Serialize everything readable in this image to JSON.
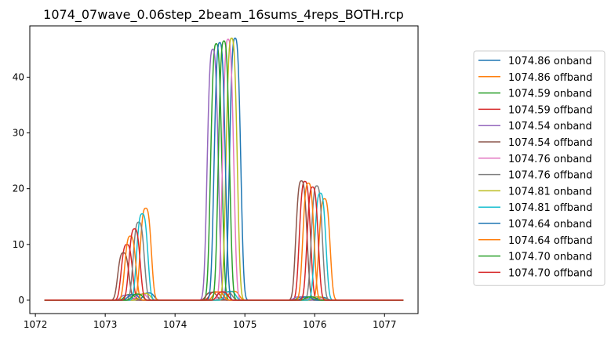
{
  "chart_data": {
    "type": "line",
    "title": "1074_07wave_0.06step_2beam_16sums_4reps_BOTH.rcp",
    "xlabel": "",
    "ylabel": "",
    "xlim": [
      1071.92,
      1077.48
    ],
    "ylim": [
      -2.4,
      49.2
    ],
    "xticks": [
      1072,
      1073,
      1074,
      1075,
      1076,
      1077
    ],
    "yticks": [
      0,
      10,
      20,
      30,
      40
    ],
    "grid": false,
    "legend": {
      "position": "right, outside plot area"
    },
    "x_range": [
      1072.13,
      1077.27
    ],
    "series_note_none": "",
    "series": [
      {
        "name": "1074.86 onband",
        "color": "#1f77b4",
        "peaks": [
          [
            1073.62,
            1.3
          ],
          [
            1074.86,
            47.0
          ],
          [
            1076.1,
            0.5
          ]
        ]
      },
      {
        "name": "1074.86 offband",
        "color": "#ff7f0e",
        "peaks": [
          [
            1073.58,
            16.5
          ],
          [
            1074.84,
            1.6
          ],
          [
            1076.14,
            18.2
          ]
        ]
      },
      {
        "name": "1074.59 onband",
        "color": "#2ca02c",
        "peaks": [
          [
            1073.35,
            1.0
          ],
          [
            1074.59,
            46.0
          ],
          [
            1075.83,
            0.6
          ]
        ]
      },
      {
        "name": "1074.59 offband",
        "color": "#d62728",
        "peaks": [
          [
            1073.31,
            10.0
          ],
          [
            1074.57,
            1.5
          ],
          [
            1075.86,
            21.3
          ]
        ]
      },
      {
        "name": "1074.54 onband",
        "color": "#9467bd",
        "peaks": [
          [
            1073.3,
            0.9
          ],
          [
            1074.54,
            45.0
          ],
          [
            1075.78,
            0.6
          ]
        ]
      },
      {
        "name": "1074.54 offband",
        "color": "#8c564b",
        "peaks": [
          [
            1073.26,
            8.5
          ],
          [
            1074.52,
            1.4
          ],
          [
            1075.81,
            21.4
          ]
        ]
      },
      {
        "name": "1074.76 onband",
        "color": "#e377c2",
        "peaks": [
          [
            1073.52,
            1.1
          ],
          [
            1074.76,
            46.8
          ],
          [
            1076.0,
            0.6
          ]
        ]
      },
      {
        "name": "1074.76 offband",
        "color": "#7f7f7f",
        "peaks": [
          [
            1073.48,
            14.0
          ],
          [
            1074.74,
            1.5
          ],
          [
            1076.03,
            20.5
          ]
        ]
      },
      {
        "name": "1074.81 onband",
        "color": "#bcbd22",
        "peaks": [
          [
            1073.57,
            1.2
          ],
          [
            1074.81,
            47.0
          ],
          [
            1076.05,
            0.6
          ]
        ]
      },
      {
        "name": "1074.81 offband",
        "color": "#17becf",
        "peaks": [
          [
            1073.53,
            15.5
          ],
          [
            1074.79,
            1.6
          ],
          [
            1076.08,
            19.2
          ]
        ]
      },
      {
        "name": "1074.64 onband",
        "color": "#1f77b4",
        "peaks": [
          [
            1073.4,
            1.0
          ],
          [
            1074.64,
            46.2
          ],
          [
            1075.88,
            0.6
          ]
        ]
      },
      {
        "name": "1074.64 offband",
        "color": "#ff7f0e",
        "peaks": [
          [
            1073.36,
            11.5
          ],
          [
            1074.62,
            1.5
          ],
          [
            1075.91,
            21.0
          ]
        ]
      },
      {
        "name": "1074.70 onband",
        "color": "#2ca02c",
        "peaks": [
          [
            1073.46,
            1.1
          ],
          [
            1074.7,
            46.5
          ],
          [
            1075.94,
            0.6
          ]
        ]
      },
      {
        "name": "1074.70 offband",
        "color": "#d62728",
        "peaks": [
          [
            1073.42,
            12.8
          ],
          [
            1074.68,
            1.5
          ],
          [
            1075.97,
            20.3
          ]
        ]
      }
    ]
  }
}
